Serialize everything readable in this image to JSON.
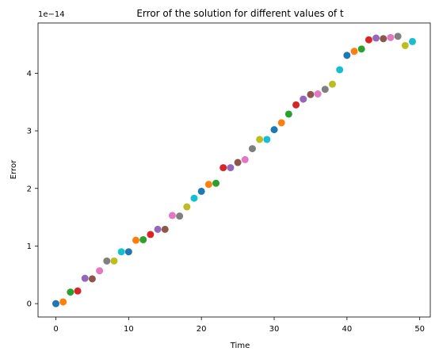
{
  "chart_data": {
    "type": "scatter",
    "title": "Error of the solution for different values of t",
    "xlabel": "Time",
    "ylabel": "Error",
    "y_offset_label": "1e−14",
    "xlim": [
      -2.45,
      51.45
    ],
    "ylim": [
      -0.232,
      4.872
    ],
    "x_ticks": [
      0,
      10,
      20,
      30,
      40,
      50
    ],
    "y_ticks": [
      0,
      1,
      2,
      3,
      4
    ],
    "grid": false,
    "legend": "none",
    "color_cycle": [
      "#1f77b4",
      "#ff7f0e",
      "#2ca02c",
      "#d62728",
      "#9467bd",
      "#8c564b",
      "#e377c2",
      "#7f7f7f",
      "#bcbd22",
      "#17becf"
    ],
    "x": [
      0,
      1,
      2,
      3,
      4,
      5,
      6,
      7,
      8,
      9,
      10,
      11,
      12,
      13,
      14,
      15,
      16,
      17,
      18,
      19,
      20,
      21,
      22,
      23,
      24,
      25,
      26,
      27,
      28,
      29,
      30,
      31,
      32,
      33,
      34,
      35,
      36,
      37,
      38,
      39,
      40,
      41,
      42,
      43,
      44,
      45,
      46,
      47,
      48,
      49
    ],
    "y": [
      0.0,
      0.03,
      0.2,
      0.22,
      0.44,
      0.43,
      0.57,
      0.74,
      0.74,
      0.9,
      0.9,
      1.1,
      1.11,
      1.2,
      1.29,
      1.29,
      1.53,
      1.52,
      1.68,
      1.83,
      1.95,
      2.07,
      2.09,
      2.36,
      2.36,
      2.45,
      2.5,
      2.69,
      2.85,
      2.85,
      3.02,
      3.14,
      3.29,
      3.45,
      3.55,
      3.63,
      3.64,
      3.72,
      3.81,
      4.06,
      4.31,
      4.38,
      4.42,
      4.58,
      4.61,
      4.6,
      4.62,
      4.64,
      4.48,
      4.55
    ]
  }
}
